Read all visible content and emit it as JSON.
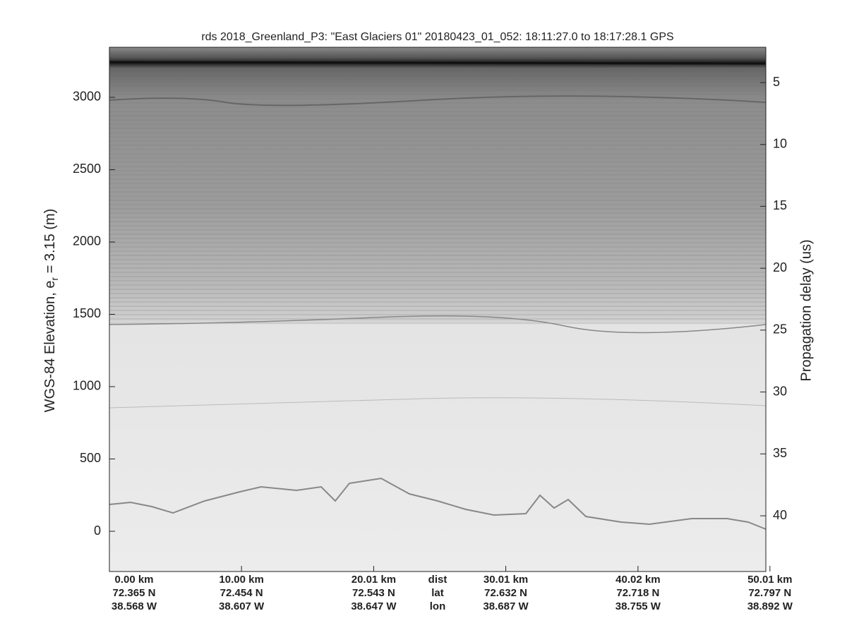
{
  "chart_data": {
    "type": "echogram",
    "title": "rds 2018_Greenland_P3: \"East Glaciers 01\"  20180423_01_052: 18:11:27.0 to 18:17:28.1 GPS",
    "ylabel": [
      "WGS-84 Elevation, e",
      "r",
      " = 3.15 (m)"
    ],
    "y2label": "Propagation delay (us)",
    "xlim": [
      0,
      49.7
    ],
    "ylim": [
      -278,
      3346
    ],
    "yticks": [
      0,
      500,
      1000,
      1500,
      2000,
      2500,
      3000
    ],
    "y2lim": [
      2.15,
      44.5
    ],
    "y2ticks": [
      5,
      10,
      15,
      20,
      25,
      30,
      35,
      40
    ],
    "xticks": [
      {
        "value": 0,
        "label": "0.00 km"
      },
      {
        "value": 10,
        "label": "10.00 km"
      },
      {
        "value": 20.01,
        "label": "20.01 km"
      },
      {
        "value": 30.01,
        "label": "30.01 km"
      },
      {
        "value": 40.02,
        "label": "40.02 km"
      },
      {
        "value": 50.01,
        "label": "50.01 km"
      }
    ],
    "lat_labels": [
      "72.365 N",
      "72.454 N",
      "72.543 N",
      "72.632 N",
      "72.718 N",
      "72.797 N"
    ],
    "lon_labels": [
      "38.568 W",
      "38.607 W",
      "38.647 W",
      "38.687 W",
      "38.755 W",
      "38.892 W"
    ],
    "row_labels": [
      "dist",
      "lat",
      "lon"
    ]
  }
}
